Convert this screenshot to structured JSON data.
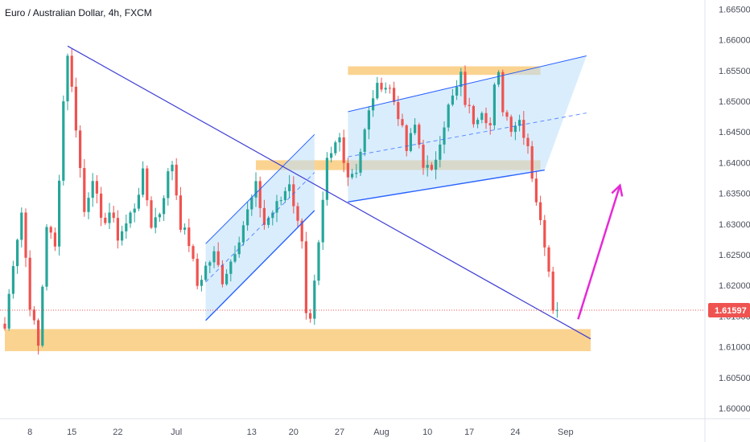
{
  "header": {
    "title": "Euro / Australian Dollar, 4h, FXCM"
  },
  "colors": {
    "up": "#26a69a",
    "down": "#ef5350",
    "trendline": "#3f3fd6",
    "channel_line": "#2962ff",
    "channel_fill": "#bbdefb",
    "zone": "#f9c46b",
    "arrow": "#e62ad6",
    "price_line": "#ef5350",
    "badge": "#ef5350"
  },
  "chart_data": {
    "type": "candlestick",
    "symbol": "Euro / Australian Dollar",
    "timeframe": "4h",
    "source": "FXCM",
    "y_axis": {
      "range": [
        1.5983,
        1.6665
      ],
      "ticks": [
        "1.66500",
        "1.66000",
        "1.65500",
        "1.65000",
        "1.64500",
        "1.64000",
        "1.63500",
        "1.63000",
        "1.62500",
        "1.62000",
        "1.61500",
        "1.61000",
        "1.60500",
        "1.60000"
      ]
    },
    "x_axis": {
      "ticks": [
        {
          "label": "8",
          "index": 6
        },
        {
          "label": "15",
          "index": 16
        },
        {
          "label": "22",
          "index": 27
        },
        {
          "label": "Jul",
          "index": 41
        },
        {
          "label": "13",
          "index": 59
        },
        {
          "label": "20",
          "index": 69
        },
        {
          "label": "27",
          "index": 80
        },
        {
          "label": "Aug",
          "index": 90
        },
        {
          "label": "10",
          "index": 101
        },
        {
          "label": "17",
          "index": 111
        },
        {
          "label": "24",
          "index": 122
        },
        {
          "label": "Sep",
          "index": 134
        }
      ]
    },
    "last_price": "1.61597",
    "anchors": [
      [
        0,
        1.613
      ],
      [
        2,
        1.624
      ],
      [
        4,
        1.632
      ],
      [
        6,
        1.617
      ],
      [
        8,
        1.61
      ],
      [
        10,
        1.63
      ],
      [
        12,
        1.626
      ],
      [
        14,
        1.65
      ],
      [
        15,
        1.658
      ],
      [
        17,
        1.646
      ],
      [
        19,
        1.632
      ],
      [
        21,
        1.638
      ],
      [
        23,
        1.63
      ],
      [
        25,
        1.632
      ],
      [
        27,
        1.628
      ],
      [
        29,
        1.63
      ],
      [
        31,
        1.633
      ],
      [
        33,
        1.638
      ],
      [
        35,
        1.63
      ],
      [
        37,
        1.632
      ],
      [
        39,
        1.638
      ],
      [
        40,
        1.64
      ],
      [
        42,
        1.63
      ],
      [
        44,
        1.627
      ],
      [
        46,
        1.62
      ],
      [
        48,
        1.623
      ],
      [
        50,
        1.625
      ],
      [
        52,
        1.621
      ],
      [
        54,
        1.624
      ],
      [
        56,
        1.628
      ],
      [
        58,
        1.632
      ],
      [
        60,
        1.636
      ],
      [
        62,
        1.63
      ],
      [
        64,
        1.632
      ],
      [
        66,
        1.634
      ],
      [
        68,
        1.637
      ],
      [
        70,
        1.63
      ],
      [
        71,
        1.628
      ],
      [
        72,
        1.616
      ],
      [
        73,
        1.614
      ],
      [
        74,
        1.62
      ],
      [
        75,
        1.626
      ],
      [
        76,
        1.633
      ],
      [
        77,
        1.64
      ],
      [
        78,
        1.641
      ],
      [
        79,
        1.643
      ],
      [
        80,
        1.644
      ],
      [
        82,
        1.638
      ],
      [
        84,
        1.639
      ],
      [
        86,
        1.645
      ],
      [
        88,
        1.651
      ],
      [
        90,
        1.653
      ],
      [
        92,
        1.652
      ],
      [
        94,
        1.648
      ],
      [
        96,
        1.642
      ],
      [
        98,
        1.646
      ],
      [
        100,
        1.64
      ],
      [
        102,
        1.638
      ],
      [
        104,
        1.644
      ],
      [
        106,
        1.649
      ],
      [
        108,
        1.652
      ],
      [
        109,
        1.654
      ],
      [
        110,
        1.65
      ],
      [
        112,
        1.647
      ],
      [
        114,
        1.649
      ],
      [
        116,
        1.646
      ],
      [
        117,
        1.652
      ],
      [
        118,
        1.654
      ],
      [
        119,
        1.649
      ],
      [
        121,
        1.646
      ],
      [
        123,
        1.647
      ],
      [
        124,
        1.645
      ],
      [
        125,
        1.643
      ],
      [
        126,
        1.638
      ],
      [
        127,
        1.634
      ],
      [
        128,
        1.63
      ],
      [
        129,
        1.627
      ],
      [
        130,
        1.623
      ],
      [
        131,
        1.617
      ],
      [
        132,
        1.616
      ]
    ],
    "drawings": {
      "support_zone": {
        "from_index": 0,
        "to_index": 140,
        "y_top": 1.6129,
        "y_bottom": 1.6093
      },
      "resistance_zone_top": {
        "from_index": 82,
        "to_index": 128,
        "y_top": 1.6557,
        "y_bottom": 1.6543
      },
      "resistance_zone_mid": {
        "from_index": 60,
        "to_index": 128,
        "y_top": 1.6404,
        "y_bottom": 1.6388
      },
      "descending_trendline": {
        "from": [
          15,
          1.659
        ],
        "to": [
          140,
          1.6113
        ]
      },
      "rising_channel_left": {
        "upper_from": [
          48,
          1.6268
        ],
        "upper_to": [
          74,
          1.6446
        ],
        "lower_from": [
          48,
          1.6143
        ],
        "lower_to": [
          74,
          1.6322
        ]
      },
      "rising_channel_right": {
        "upper_from": [
          82,
          1.6483
        ],
        "upper_to": [
          139,
          1.6574
        ],
        "lower_from": [
          82,
          1.6336
        ],
        "lower_to": [
          129,
          1.6388
        ]
      },
      "forecast_arrow": {
        "from": [
          137,
          1.6145
        ],
        "to": [
          147,
          1.6363
        ]
      }
    }
  }
}
